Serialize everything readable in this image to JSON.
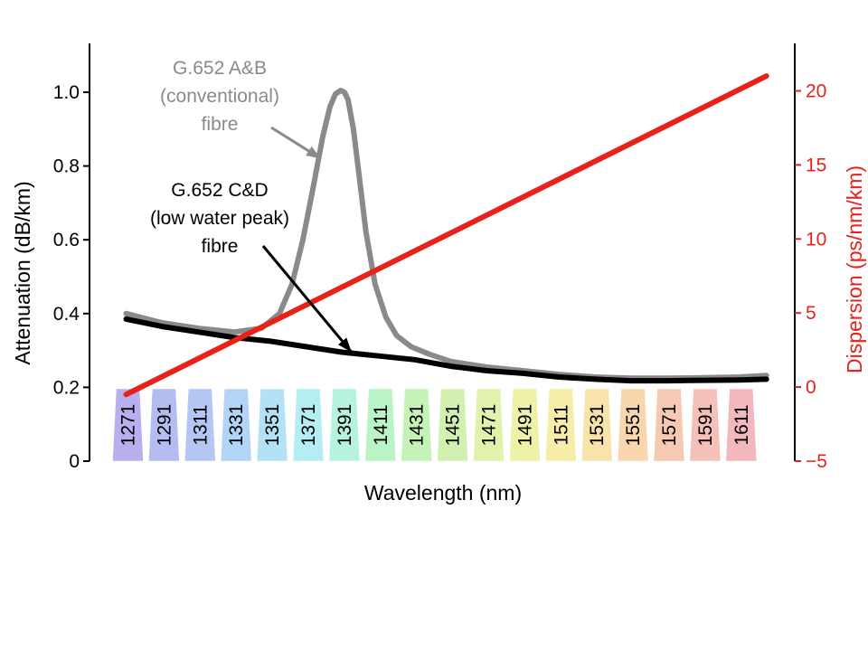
{
  "chart_data": {
    "type": "line",
    "xlabel": "Wavelength (nm)",
    "ylabel_left": "Attenuation (dB/km)",
    "ylabel_right": "Dispersion (ps/nm/km)",
    "x_range": [
      1260,
      1625
    ],
    "y_left_range": [
      0,
      1.12
    ],
    "y_right_range": [
      -5,
      23
    ],
    "y_left_ticks": [
      {
        "value": 0,
        "label": "0"
      },
      {
        "value": 0.2,
        "label": "0.2"
      },
      {
        "value": 0.4,
        "label": "0.4"
      },
      {
        "value": 0.6,
        "label": "0.6"
      },
      {
        "value": 0.8,
        "label": "0.8"
      },
      {
        "value": 1.0,
        "label": "1.0"
      }
    ],
    "y_right_ticks": [
      {
        "value": -5,
        "label": "−5"
      },
      {
        "value": 0,
        "label": "0"
      },
      {
        "value": 5,
        "label": "5"
      },
      {
        "value": 10,
        "label": "10"
      },
      {
        "value": 15,
        "label": "15"
      },
      {
        "value": 20,
        "label": "20"
      }
    ],
    "grid": false,
    "colors": {
      "g652ab": "#8a8a8a",
      "g652cd": "#000000",
      "dispersion": "#e8211b",
      "right_axis": "#e8211b"
    },
    "series": [
      {
        "key": "g652ab",
        "axis": "left",
        "x": [
          1270,
          1290,
          1310,
          1330,
          1345,
          1355,
          1362,
          1368,
          1374,
          1379,
          1383,
          1386,
          1389,
          1391,
          1393,
          1396,
          1399,
          1403,
          1408,
          1414,
          1420,
          1428,
          1438,
          1450,
          1470,
          1490,
          1510,
          1530,
          1550,
          1570,
          1590,
          1610,
          1625
        ],
        "y": [
          0.4,
          0.375,
          0.36,
          0.35,
          0.36,
          0.4,
          0.48,
          0.6,
          0.75,
          0.88,
          0.96,
          0.995,
          1.005,
          1.0,
          0.98,
          0.9,
          0.78,
          0.62,
          0.48,
          0.39,
          0.34,
          0.31,
          0.29,
          0.27,
          0.255,
          0.245,
          0.235,
          0.228,
          0.225,
          0.225,
          0.226,
          0.228,
          0.232
        ]
      },
      {
        "key": "g652cd",
        "axis": "left",
        "x": [
          1270,
          1290,
          1310,
          1330,
          1350,
          1370,
          1390,
          1410,
          1430,
          1450,
          1470,
          1490,
          1510,
          1530,
          1550,
          1570,
          1590,
          1610,
          1625
        ],
        "y": [
          0.385,
          0.365,
          0.35,
          0.335,
          0.325,
          0.31,
          0.295,
          0.285,
          0.275,
          0.257,
          0.245,
          0.238,
          0.228,
          0.222,
          0.218,
          0.218,
          0.219,
          0.22,
          0.222
        ]
      },
      {
        "key": "dispersion",
        "axis": "right",
        "x": [
          1270,
          1625
        ],
        "y": [
          -0.5,
          21
        ]
      }
    ],
    "cwdm_channels": [
      "1271",
      "1291",
      "1311",
      "1331",
      "1351",
      "1371",
      "1391",
      "1411",
      "1431",
      "1451",
      "1471",
      "1491",
      "1511",
      "1531",
      "1551",
      "1571",
      "1591",
      "1611"
    ],
    "channel_colors": [
      "#b8b0ee",
      "#b5bcf2",
      "#b3c6f4",
      "#b2d4f6",
      "#b3e2f6",
      "#b4eef2",
      "#b5f3de",
      "#baf3c6",
      "#c4f2b7",
      "#d2f1b0",
      "#e2f1ab",
      "#eef1a8",
      "#f6eda8",
      "#f8e3ab",
      "#f8d6ae",
      "#f6cab2",
      "#f4c0b8",
      "#f2b8bd"
    ],
    "channel_nm": [
      1271,
      1291,
      1311,
      1331,
      1351,
      1371,
      1391,
      1411,
      1431,
      1451,
      1471,
      1491,
      1511,
      1531,
      1551,
      1571,
      1591,
      1611
    ],
    "annotations": [
      {
        "lines": [
          "G.652 A&B",
          "(conventional)",
          "fibre"
        ],
        "color": "#8a8a8a",
        "arrow_to": [
          1378,
          0.82
        ]
      },
      {
        "lines": [
          "G.652 C&D",
          "(low water peak)",
          "fibre"
        ],
        "color": "#000000",
        "arrow_to": [
          1395,
          0.295
        ]
      }
    ]
  }
}
